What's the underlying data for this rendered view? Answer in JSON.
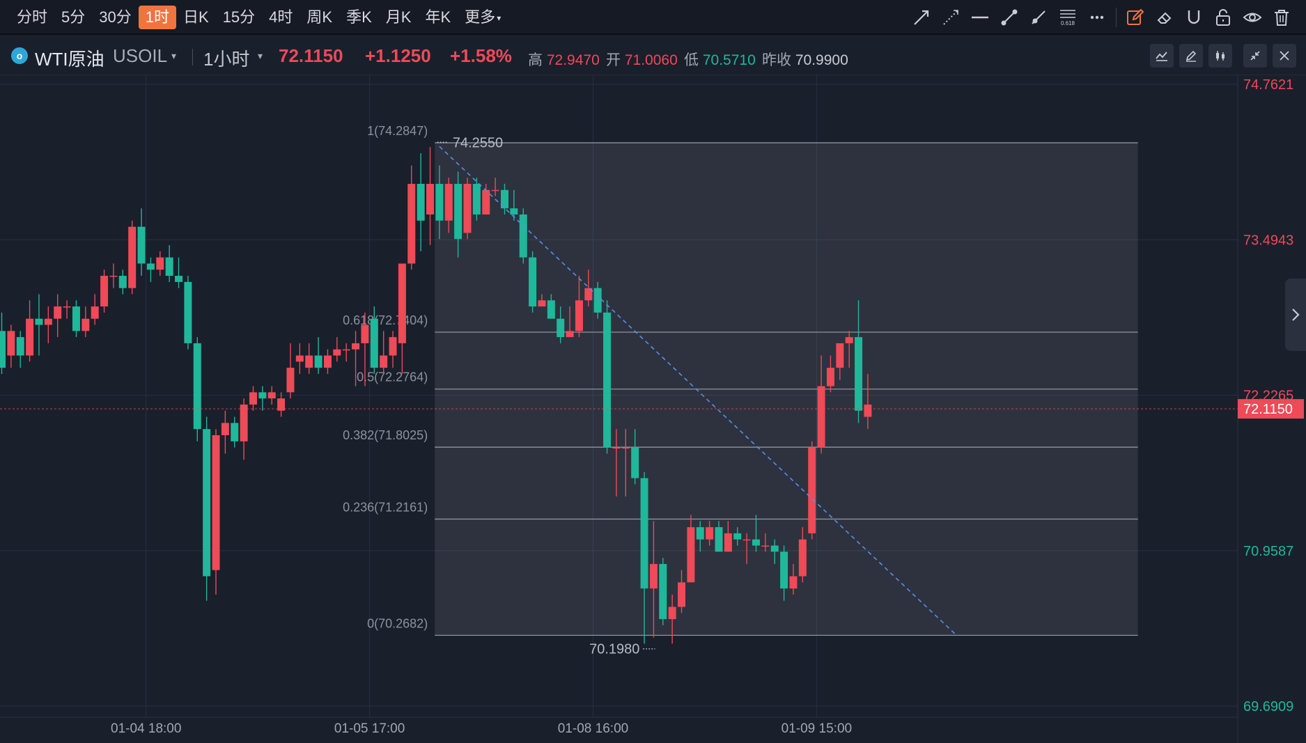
{
  "toolbar": {
    "timeframes": [
      {
        "label": "分时"
      },
      {
        "label": "5分"
      },
      {
        "label": "30分"
      },
      {
        "label": "1时",
        "active": true
      },
      {
        "label": "日K"
      },
      {
        "label": "15分"
      },
      {
        "label": "4时"
      },
      {
        "label": "周K"
      },
      {
        "label": "季K"
      },
      {
        "label": "月K"
      },
      {
        "label": "年K"
      },
      {
        "label": "更多",
        "dropdown": true
      }
    ],
    "tools": [
      "arrow-line-icon",
      "dotted-line-icon",
      "horizontal-line-icon",
      "segment-icon",
      "ray-icon",
      "fibonacci-icon",
      "more-tools-icon",
      "edit-drawing-icon",
      "eraser-icon",
      "magnet-icon",
      "lock-icon",
      "visibility-icon",
      "delete-icon"
    ],
    "fib_icon_label": "0.618"
  },
  "symbol": {
    "logo": "o",
    "name": "WTI原油",
    "code": "USOIL",
    "interval": "1小时",
    "price": "72.1150",
    "change": "+1.1250",
    "change_pct": "+1.58%",
    "stats": {
      "high_label": "高",
      "high": "72.9470",
      "open_label": "开",
      "open": "71.0060",
      "low_label": "低",
      "low": "70.5710",
      "prev_close_label": "昨收",
      "prev_close": "70.9900"
    }
  },
  "colors": {
    "up": "#ee4a57",
    "down": "#1fb89a",
    "background": "#1a1f2c",
    "grid": "#263040",
    "fib_line": "#8f949e",
    "trend_line": "#5b8def",
    "active_tab": "#f0743e"
  },
  "chart_data": {
    "type": "candlestick",
    "price_axis": {
      "range": [
        69.6909,
        74.7621
      ],
      "labels": [
        {
          "value": 74.7621,
          "text": "74.7621",
          "color": "up"
        },
        {
          "value": 73.4943,
          "text": "73.4943",
          "color": "up"
        },
        {
          "value": 72.2265,
          "text": "72.2265",
          "color": "up"
        },
        {
          "value": 70.9587,
          "text": "70.9587",
          "color": "down"
        },
        {
          "value": 69.6909,
          "text": "69.6909",
          "color": "down"
        }
      ],
      "current": {
        "value": 72.115,
        "text": "72.1150"
      }
    },
    "time_labels": [
      {
        "index": 15.5,
        "text": "01-04 18:00"
      },
      {
        "index": 39.5,
        "text": "01-05 17:00"
      },
      {
        "index": 63.5,
        "text": "01-08 16:00"
      },
      {
        "index": 87.5,
        "text": "01-09 15:00"
      }
    ],
    "fibonacci": {
      "start_index": 46.5,
      "end_index": 122,
      "levels": [
        {
          "ratio": "1",
          "value": 74.2847
        },
        {
          "ratio": "0.618",
          "value": 72.7404
        },
        {
          "ratio": "0.5",
          "value": 72.2764
        },
        {
          "ratio": "0.382",
          "value": 71.8025
        },
        {
          "ratio": "0.236",
          "value": 71.2161
        },
        {
          "ratio": "0",
          "value": 70.2682
        }
      ],
      "high_marker": {
        "index": 47,
        "value": 74.255,
        "text": "74.2550"
      },
      "low_marker": {
        "index": 70,
        "value": 70.198,
        "text": "70.1980"
      }
    },
    "trendline": {
      "from": [
        47,
        74.255
      ],
      "to": [
        102.5,
        70.27
      ]
    },
    "candles": [
      [
        72.75,
        72.45,
        72.9,
        72.4
      ],
      [
        72.55,
        72.75,
        72.8,
        72.45
      ],
      [
        72.7,
        72.55,
        72.75,
        72.45
      ],
      [
        72.55,
        72.85,
        73.0,
        72.5
      ],
      [
        72.85,
        72.8,
        73.05,
        72.55
      ],
      [
        72.8,
        72.85,
        72.95,
        72.65
      ],
      [
        72.85,
        72.95,
        73.05,
        72.7
      ],
      [
        72.95,
        72.95,
        73.0,
        72.85
      ],
      [
        72.95,
        72.75,
        73.0,
        72.7
      ],
      [
        72.75,
        72.85,
        72.95,
        72.7
      ],
      [
        72.85,
        72.95,
        73.05,
        72.8
      ],
      [
        72.95,
        73.2,
        73.25,
        72.9
      ],
      [
        73.2,
        73.2,
        73.3,
        73.1
      ],
      [
        73.2,
        73.1,
        73.25,
        73.05
      ],
      [
        73.1,
        73.6,
        73.65,
        73.05
      ],
      [
        73.6,
        73.3,
        73.75,
        73.2
      ],
      [
        73.3,
        73.25,
        73.35,
        73.15
      ],
      [
        73.25,
        73.35,
        73.4,
        73.2
      ],
      [
        73.35,
        73.2,
        73.45,
        73.15
      ],
      [
        73.2,
        73.15,
        73.35,
        73.1
      ],
      [
        73.15,
        72.65,
        73.2,
        72.6
      ],
      [
        72.65,
        71.95,
        72.7,
        71.85
      ],
      [
        71.95,
        70.75,
        72.05,
        70.55
      ],
      [
        70.8,
        71.9,
        71.95,
        70.6
      ],
      [
        71.9,
        72.0,
        72.1,
        71.75
      ],
      [
        72.0,
        71.85,
        72.05,
        71.8
      ],
      [
        71.85,
        72.15,
        72.2,
        71.7
      ],
      [
        72.15,
        72.25,
        72.3,
        72.1
      ],
      [
        72.25,
        72.2,
        72.3,
        72.1
      ],
      [
        72.2,
        72.25,
        72.3,
        72.15
      ],
      [
        72.1,
        72.2,
        72.25,
        72.05
      ],
      [
        72.25,
        72.45,
        72.65,
        72.2
      ],
      [
        72.5,
        72.55,
        72.65,
        72.4
      ],
      [
        72.45,
        72.55,
        72.65,
        72.4
      ],
      [
        72.55,
        72.45,
        72.7,
        72.4
      ],
      [
        72.45,
        72.55,
        72.6,
        72.4
      ],
      [
        72.55,
        72.6,
        72.7,
        72.5
      ],
      [
        72.6,
        72.6,
        72.65,
        72.5
      ],
      [
        72.6,
        72.65,
        72.75,
        72.3
      ],
      [
        72.65,
        72.8,
        72.9,
        72.3
      ],
      [
        72.85,
        72.45,
        72.95,
        72.4
      ],
      [
        72.45,
        72.55,
        72.75,
        72.4
      ],
      [
        72.55,
        72.7,
        72.75,
        72.45
      ],
      [
        72.65,
        73.3,
        73.3,
        72.4
      ],
      [
        73.3,
        73.95,
        74.1,
        73.25
      ],
      [
        73.95,
        73.65,
        74.2,
        73.4
      ],
      [
        73.7,
        73.95,
        74.25,
        73.45
      ],
      [
        73.95,
        73.65,
        74.1,
        73.5
      ],
      [
        73.65,
        73.95,
        74.0,
        73.55
      ],
      [
        73.95,
        73.5,
        74.05,
        73.35
      ],
      [
        73.55,
        73.95,
        74.0,
        73.5
      ],
      [
        73.95,
        73.7,
        74.0,
        73.65
      ],
      [
        73.7,
        73.9,
        73.95,
        73.7
      ],
      [
        73.9,
        73.9,
        74.0,
        73.85
      ],
      [
        73.9,
        73.75,
        73.95,
        73.7
      ],
      [
        73.75,
        73.7,
        73.9,
        73.65
      ],
      [
        73.7,
        73.35,
        73.75,
        73.3
      ],
      [
        73.35,
        72.95,
        73.4,
        72.9
      ],
      [
        72.95,
        73.0,
        73.05,
        72.95
      ],
      [
        73.0,
        72.85,
        73.05,
        72.85
      ],
      [
        72.85,
        72.7,
        72.95,
        72.65
      ],
      [
        72.7,
        72.75,
        72.95,
        72.7
      ],
      [
        72.75,
        73.0,
        73.2,
        72.7
      ],
      [
        73.0,
        73.1,
        73.25,
        72.95
      ],
      [
        73.1,
        72.9,
        73.15,
        72.85
      ],
      [
        72.9,
        71.8,
        73.0,
        71.75
      ],
      [
        71.8,
        71.8,
        71.95,
        71.4
      ],
      [
        71.8,
        71.8,
        71.95,
        71.4
      ],
      [
        71.8,
        71.55,
        71.95,
        71.5
      ],
      [
        71.55,
        70.65,
        71.6,
        70.2
      ],
      [
        70.65,
        70.85,
        71.2,
        70.25
      ],
      [
        70.85,
        70.4,
        70.9,
        70.35
      ],
      [
        70.4,
        70.5,
        70.6,
        70.2
      ],
      [
        70.5,
        70.7,
        70.8,
        70.45
      ],
      [
        70.7,
        71.15,
        71.25,
        70.7
      ],
      [
        71.15,
        71.05,
        71.2,
        70.95
      ],
      [
        71.05,
        71.15,
        71.2,
        71.0
      ],
      [
        71.15,
        70.95,
        71.2,
        70.95
      ],
      [
        70.95,
        71.1,
        71.2,
        70.95
      ],
      [
        71.1,
        71.05,
        71.15,
        71.0
      ],
      [
        71.05,
        71.05,
        71.1,
        70.85
      ],
      [
        71.05,
        71.0,
        71.25,
        70.95
      ],
      [
        71.0,
        71.0,
        71.1,
        70.95
      ],
      [
        71.0,
        70.95,
        71.05,
        70.85
      ],
      [
        70.95,
        70.65,
        71.0,
        70.55
      ],
      [
        70.65,
        70.75,
        70.85,
        70.6
      ],
      [
        70.75,
        71.05,
        71.15,
        70.7
      ],
      [
        71.1,
        71.8,
        71.85,
        71.05
      ],
      [
        71.8,
        72.3,
        72.55,
        71.75
      ],
      [
        72.3,
        72.45,
        72.55,
        72.25
      ],
      [
        72.45,
        72.65,
        72.6,
        72.35
      ],
      [
        72.65,
        72.7,
        72.75,
        72.45
      ],
      [
        72.7,
        72.1,
        73.0,
        72.0
      ],
      [
        72.05,
        72.15,
        72.4,
        71.95
      ]
    ],
    "candle_format": [
      "open",
      "close",
      "high",
      "low"
    ]
  }
}
